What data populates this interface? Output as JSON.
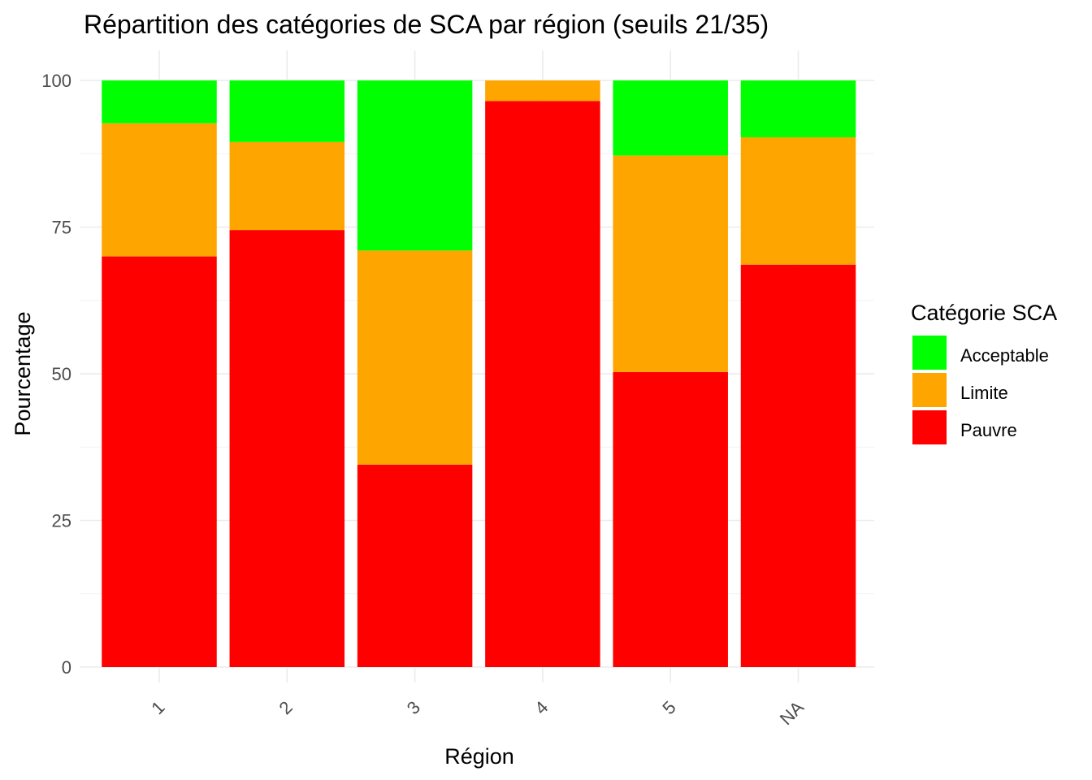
{
  "chart_data": {
    "type": "bar",
    "stacked": true,
    "title": "Répartition des catégories de SCA par région (seuils 21/35)",
    "xlabel": "Région",
    "ylabel": "Pourcentage",
    "categories": [
      "1",
      "2",
      "3",
      "4",
      "5",
      "NA"
    ],
    "ylim": [
      0,
      100
    ],
    "yticks": [
      0,
      25,
      50,
      75,
      100
    ],
    "grid": true,
    "legend": {
      "title": "Catégorie SCA",
      "position": "right"
    },
    "series": [
      {
        "name": "Pauvre",
        "color": "#ff0000",
        "values": [
          70.0,
          74.5,
          34.5,
          96.5,
          50.3,
          68.6
        ]
      },
      {
        "name": "Limite",
        "color": "#ffa500",
        "values": [
          22.7,
          15.0,
          36.5,
          3.5,
          36.9,
          21.7
        ]
      },
      {
        "name": "Acceptable",
        "color": "#00ff00",
        "values": [
          7.3,
          10.5,
          29.0,
          0.0,
          12.8,
          9.7
        ]
      }
    ]
  }
}
